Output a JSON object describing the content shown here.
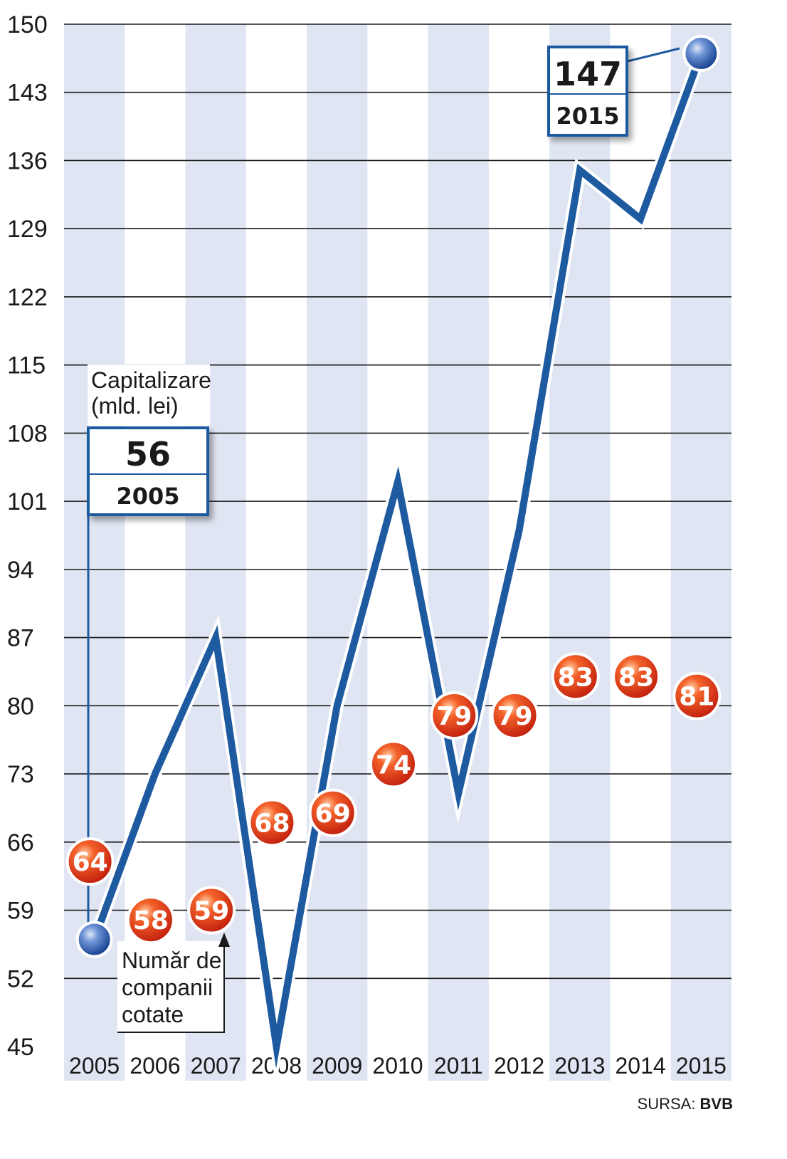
{
  "chart_data": {
    "type": "line",
    "x": [
      "2005",
      "2006",
      "2007",
      "2008",
      "2009",
      "2010",
      "2011",
      "2012",
      "2013",
      "2014",
      "2015"
    ],
    "series": [
      {
        "name": "Capitalizare (mld. lei)",
        "values": [
          56,
          73,
          87,
          45,
          80,
          103,
          71,
          98,
          135,
          130,
          147
        ],
        "color": "#1e5aa0"
      },
      {
        "name": "Număr de companii cotate",
        "values": [
          64,
          58,
          59,
          68,
          69,
          74,
          79,
          79,
          83,
          83,
          81
        ],
        "color": "#e23b1c"
      }
    ],
    "yticks": [
      "150",
      "143",
      "136",
      "129",
      "122",
      "115",
      "108",
      "101",
      "94",
      "87",
      "80",
      "73",
      "66",
      "59",
      "52",
      "45"
    ],
    "ylim": [
      45,
      150
    ],
    "grid": true,
    "band_color": "#dfe5f2"
  },
  "labels": {
    "capitalizare_line1": "Capitalizare",
    "capitalizare_line2": "(mld. lei)",
    "companii_line1": "Număr de",
    "companii_line2": "companii",
    "companii_line3": "cotate"
  },
  "callouts": {
    "start": {
      "value": "56",
      "year": "2005"
    },
    "end": {
      "value": "147",
      "year": "2015"
    }
  },
  "source": {
    "prefix": "SURSA: ",
    "name": "BVB"
  }
}
